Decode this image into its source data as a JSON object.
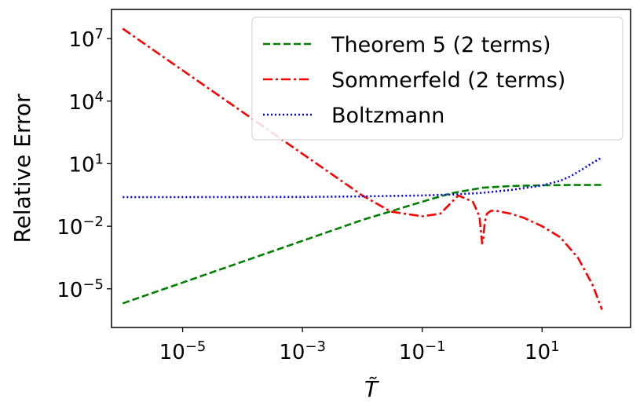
{
  "chart_data": {
    "type": "line",
    "xscale": "log",
    "yscale": "log",
    "xlabel": "T̃",
    "ylabel": "Relative Error",
    "xlim": [
      6.5e-07,
      300
    ],
    "ylim": [
      1.4e-07,
      250000000.0
    ],
    "x_ticks": [
      {
        "value": 1e-05,
        "base": "10",
        "exp": "−5"
      },
      {
        "value": 0.001,
        "base": "10",
        "exp": "−3"
      },
      {
        "value": 0.1,
        "base": "10",
        "exp": "−1"
      },
      {
        "value": 10,
        "base": "10",
        "exp": "1"
      }
    ],
    "y_ticks": [
      {
        "value": 1e-05,
        "base": "10",
        "exp": "−5"
      },
      {
        "value": 0.01,
        "base": "10",
        "exp": "−2"
      },
      {
        "value": 10,
        "base": "10",
        "exp": "1"
      },
      {
        "value": 10000.0,
        "base": "10",
        "exp": "4"
      },
      {
        "value": 10000000.0,
        "base": "10",
        "exp": "7"
      }
    ],
    "legend_position": "top-right",
    "grid": false,
    "series": [
      {
        "name": "Theorem 5 (2 terms)",
        "color": "#008000",
        "style": "dashed",
        "x": [
          1e-06,
          1e-05,
          0.0001,
          0.001,
          0.01,
          0.1,
          0.3,
          1,
          3,
          10,
          30,
          100
        ],
        "y": [
          2e-06,
          2e-05,
          0.0002,
          0.002,
          0.02,
          0.15,
          0.38,
          0.7,
          0.85,
          0.92,
          0.95,
          0.96
        ]
      },
      {
        "name": "Sommerfeld (2 terms)",
        "color": "#ff0000",
        "style": "dashdot",
        "x": [
          1e-06,
          1e-05,
          0.0001,
          0.001,
          0.01,
          0.03,
          0.1,
          0.2,
          0.4,
          0.7,
          0.9,
          1.0,
          1.05,
          1.1,
          1.2,
          1.4,
          1.7,
          2,
          3,
          5,
          10,
          20,
          40,
          70,
          100
        ],
        "y": [
          30000000.0,
          300000.0,
          3000.0,
          30,
          0.3,
          0.05,
          0.03,
          0.04,
          0.3,
          0.15,
          0.03,
          0.0015,
          0.003,
          0.015,
          0.04,
          0.055,
          0.055,
          0.05,
          0.04,
          0.025,
          0.01,
          0.003,
          0.0003,
          1.5e-05,
          1e-06
        ]
      },
      {
        "name": "Boltzmann",
        "color": "#0000ff",
        "style": "dotted",
        "x": [
          1e-06,
          1e-05,
          0.0001,
          0.001,
          0.01,
          0.1,
          0.3,
          1,
          3,
          10,
          20,
          30,
          50,
          70,
          100
        ],
        "y": [
          0.25,
          0.25,
          0.251,
          0.255,
          0.27,
          0.3,
          0.33,
          0.4,
          0.55,
          0.9,
          1.5,
          2.5,
          6,
          11,
          20
        ]
      }
    ]
  }
}
